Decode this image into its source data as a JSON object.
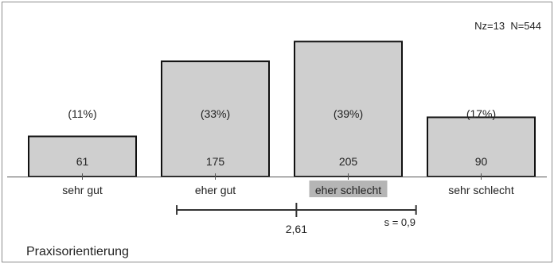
{
  "chart_data": {
    "type": "bar",
    "categories": [
      "sehr gut",
      "eher gut",
      "eher schlecht",
      "sehr schlecht"
    ],
    "values": [
      61,
      175,
      205,
      90
    ],
    "percent_labels": [
      "(11%)",
      "(33%)",
      "(39%)",
      "(17%)"
    ],
    "highlighted_category": "eher schlecht",
    "ylim": [
      0,
      215
    ],
    "sample_info": "Nz=13  N=544",
    "title": "Praxisorientierung",
    "mean": {
      "value": 2.61,
      "label": "2,61"
    },
    "sd": {
      "value": 0.9,
      "label": "s = 0,9"
    },
    "scale_range": [
      1,
      4
    ],
    "colors": {
      "bar_fill": "#cfcfcf",
      "bar_stroke": "#111111",
      "highlight": "#b5b5b5",
      "frame": "#8c8c8c",
      "axis": "#555555"
    }
  }
}
